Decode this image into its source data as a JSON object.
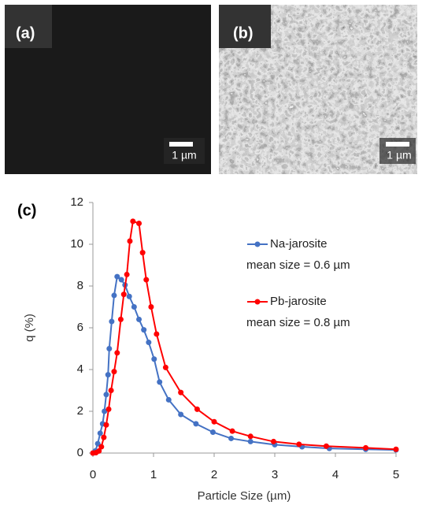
{
  "panels": [
    {
      "label": "(a)",
      "scale_bar": "1 µm"
    },
    {
      "label": "(b)",
      "scale_bar": "1 µm"
    }
  ],
  "chart_label": "(c)",
  "chart_data": {
    "type": "line",
    "x_label": "Particle Size (µm)",
    "y_label": "q (%)",
    "xlim": [
      0,
      5
    ],
    "xticks": [
      0,
      1,
      2,
      3,
      4,
      5
    ],
    "ylim": [
      0,
      12
    ],
    "yticks": [
      0,
      2,
      4,
      6,
      8,
      10,
      12
    ],
    "grid": false,
    "legend": "upper right",
    "series": [
      {
        "name": "Na-jarosite",
        "color": "#4472c4",
        "x": [
          0,
          0.04,
          0.08,
          0.12,
          0.16,
          0.19,
          0.22,
          0.25,
          0.27,
          0.31,
          0.35,
          0.4,
          0.47,
          0.53,
          0.6,
          0.68,
          0.76,
          0.84,
          0.92,
          1.01,
          1.1,
          1.25,
          1.45,
          1.7,
          1.98,
          2.28,
          2.6,
          3.0,
          3.45,
          3.9,
          4.5,
          5.0
        ],
        "values": [
          0,
          0.1,
          0.45,
          0.95,
          1.4,
          2.0,
          2.8,
          3.75,
          5.0,
          6.3,
          7.55,
          8.45,
          8.3,
          8.05,
          7.5,
          7.0,
          6.4,
          5.9,
          5.3,
          4.5,
          3.4,
          2.55,
          1.85,
          1.4,
          1.0,
          0.7,
          0.55,
          0.4,
          0.3,
          0.22,
          0.18,
          0.15
        ]
      },
      {
        "name": "Pb-jarosite",
        "color": "#ff0000",
        "x": [
          0,
          0.05,
          0.1,
          0.14,
          0.18,
          0.22,
          0.26,
          0.3,
          0.35,
          0.4,
          0.46,
          0.51,
          0.56,
          0.61,
          0.66,
          0.76,
          0.82,
          0.88,
          0.96,
          1.05,
          1.2,
          1.45,
          1.72,
          2.0,
          2.3,
          2.6,
          2.98,
          3.4,
          3.85,
          4.5,
          5.0
        ],
        "values": [
          0,
          0.02,
          0.1,
          0.3,
          0.75,
          1.35,
          2.1,
          3.0,
          3.9,
          4.8,
          6.4,
          7.6,
          8.55,
          10.15,
          11.1,
          11.0,
          9.6,
          8.3,
          7.0,
          5.7,
          4.1,
          2.9,
          2.1,
          1.5,
          1.05,
          0.8,
          0.55,
          0.42,
          0.33,
          0.25,
          0.18
        ]
      }
    ],
    "annotations": [
      "mean size = 0.6 µm",
      "mean size = 0.8 µm"
    ]
  }
}
